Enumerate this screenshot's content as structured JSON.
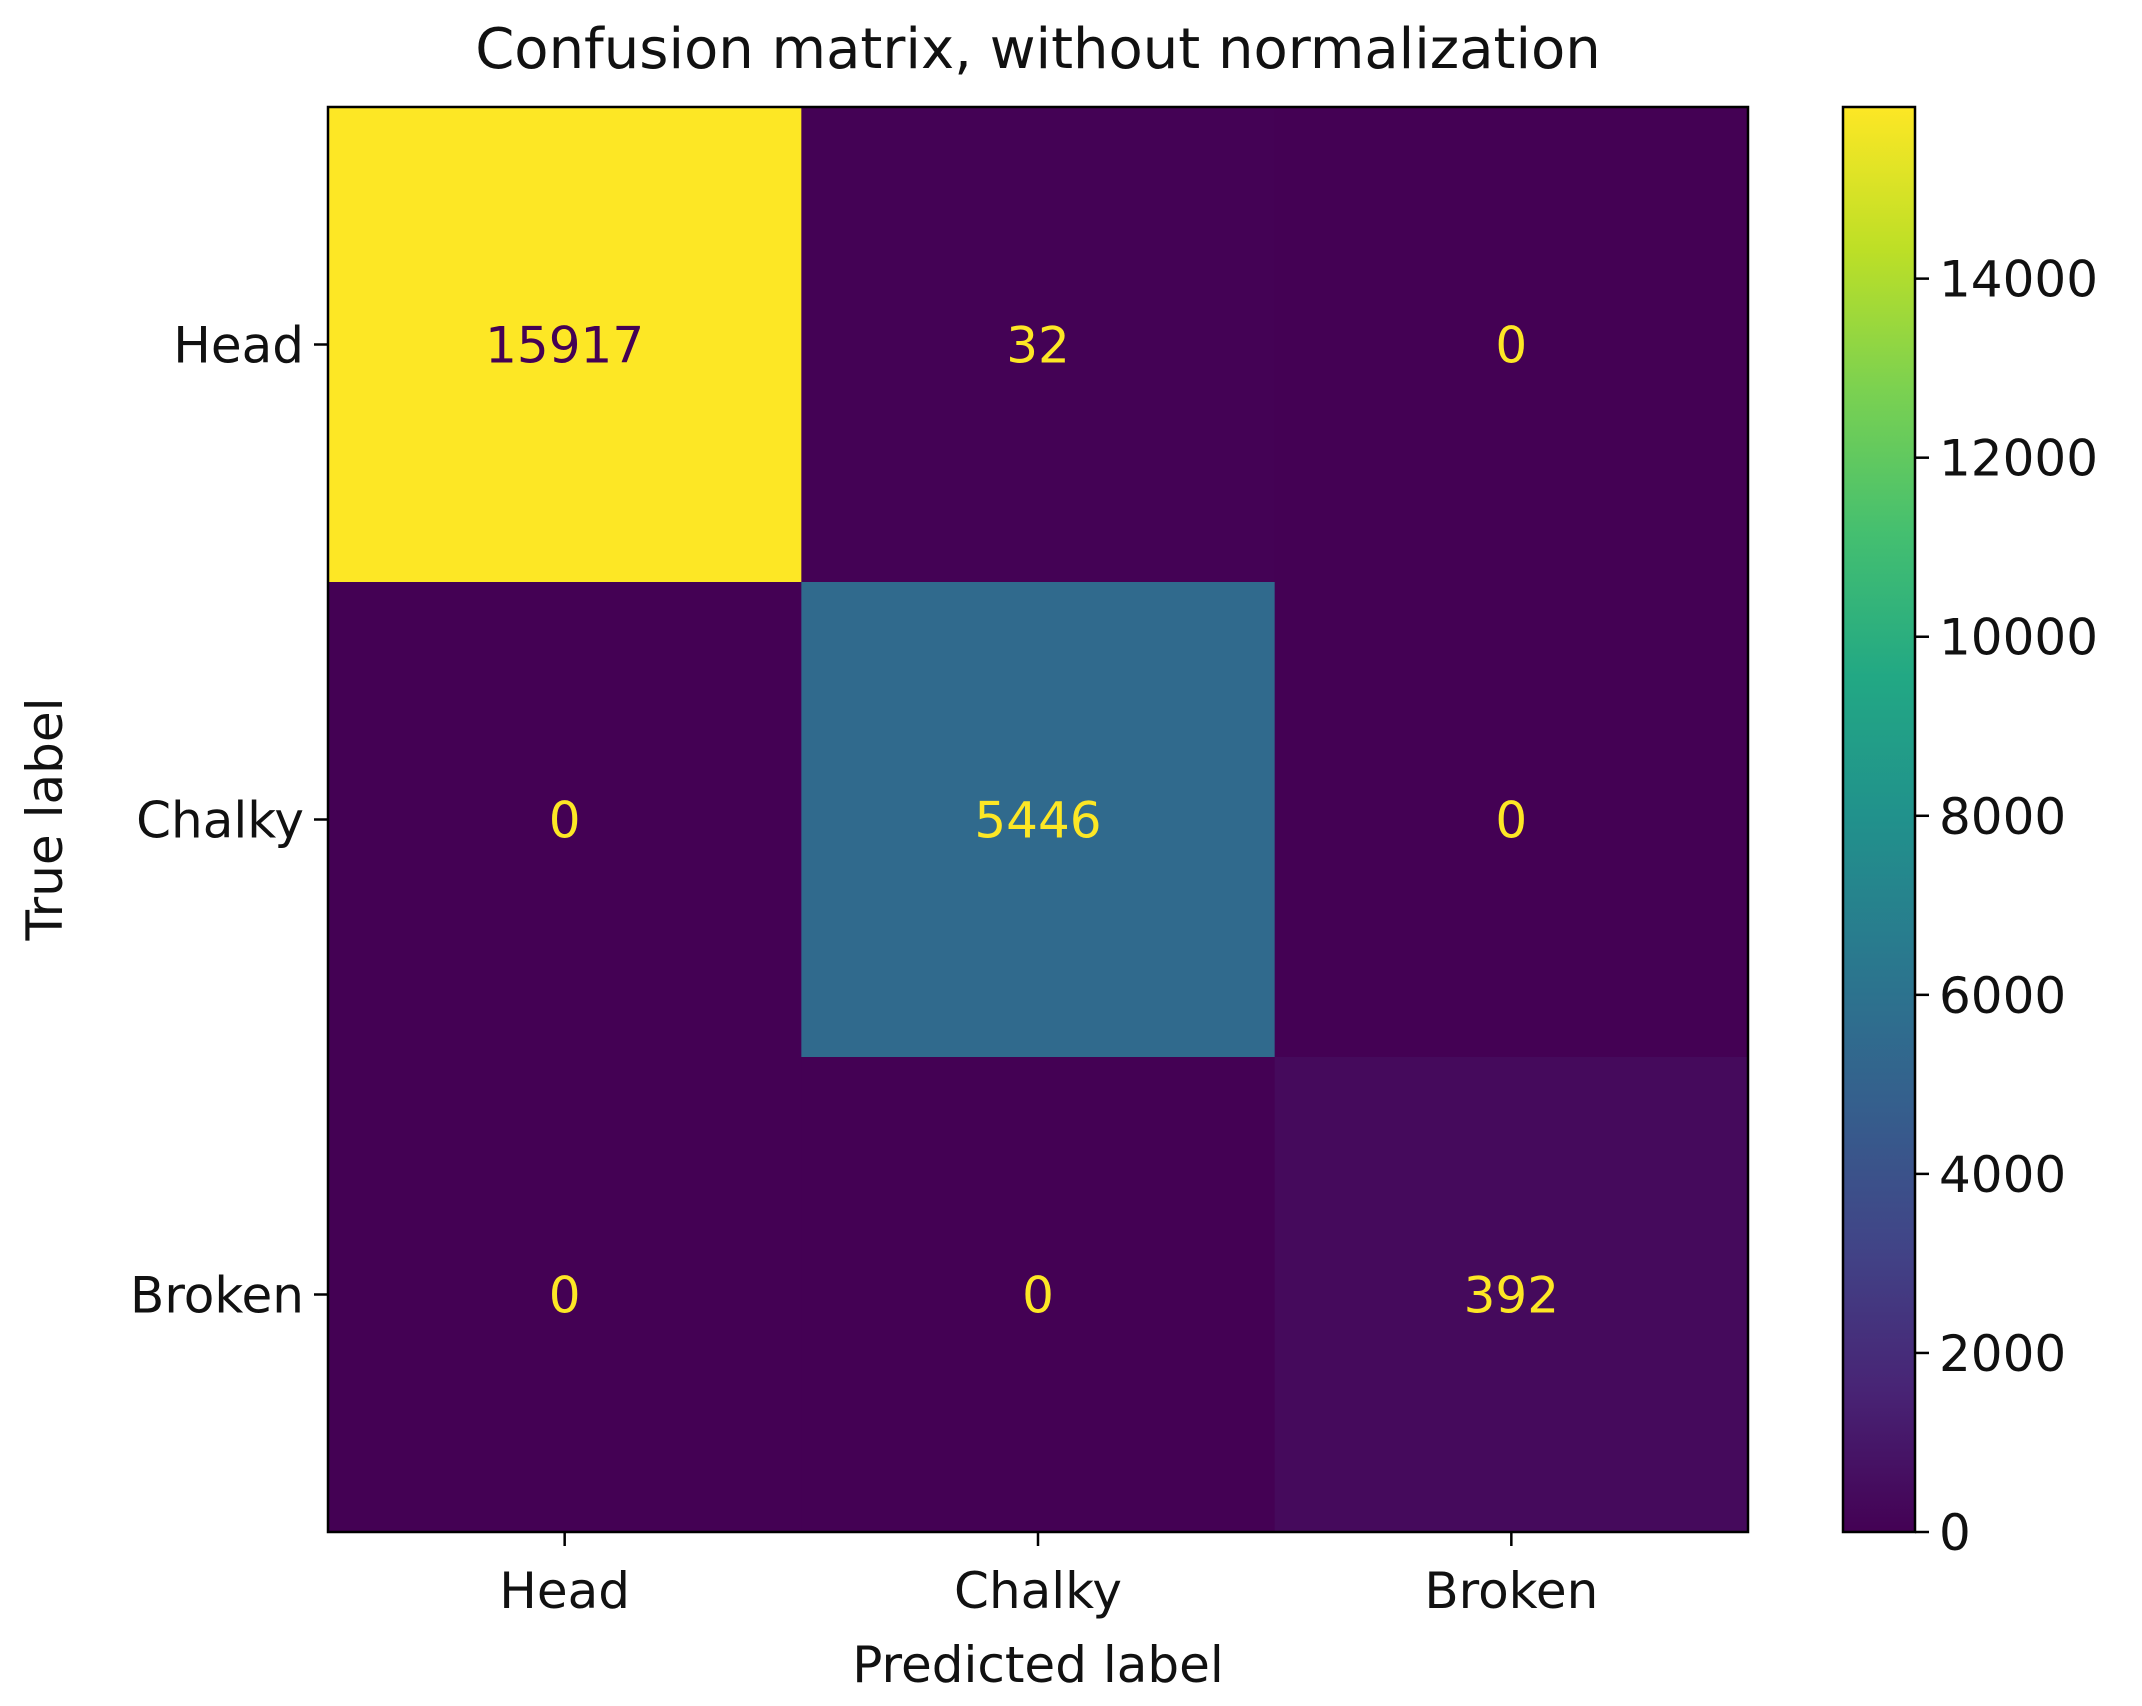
{
  "chart_data": {
    "type": "heatmap",
    "title": "Confusion matrix, without normalization",
    "xlabel": "Predicted label",
    "ylabel": "True label",
    "row_labels": [
      "Head",
      "Chalky",
      "Broken"
    ],
    "col_labels": [
      "Head",
      "Chalky",
      "Broken"
    ],
    "matrix": [
      [
        15917,
        32,
        0
      ],
      [
        0,
        5446,
        0
      ],
      [
        0,
        0,
        392
      ]
    ],
    "colormap": "viridis",
    "colorbar": {
      "vmin": 0,
      "vmax": 15917,
      "ticks": [
        0,
        2000,
        4000,
        6000,
        8000,
        10000,
        12000,
        14000
      ]
    }
  }
}
